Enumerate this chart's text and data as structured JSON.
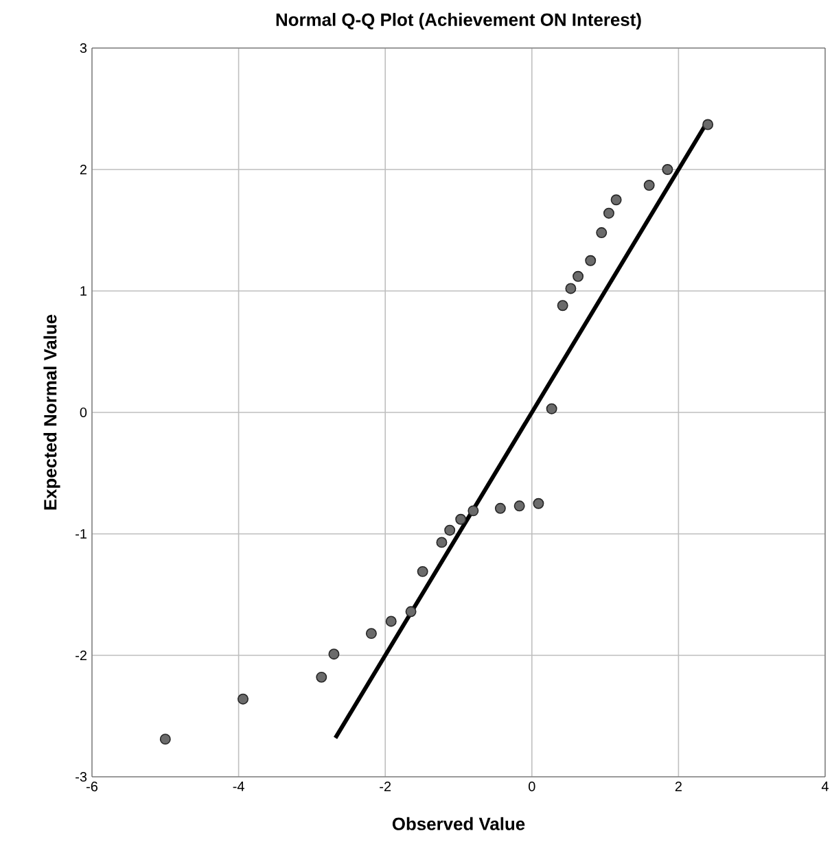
{
  "chart_data": {
    "type": "scatter",
    "title": "Normal Q-Q Plot (Achievement ON Interest)",
    "xlabel": "Observed Value",
    "ylabel": "Expected Normal Value",
    "xlim": [
      -6,
      4
    ],
    "ylim": [
      -3,
      3
    ],
    "xticks": [
      -6,
      -4,
      -2,
      0,
      2,
      4
    ],
    "yticks": [
      -3,
      -2,
      -1,
      0,
      1,
      2,
      3
    ],
    "grid": true,
    "series": [
      {
        "color": "#6b6b6b",
        "marker": "circle",
        "x": [
          2.4,
          1.85,
          1.6,
          1.15,
          1.05,
          0.95,
          0.8,
          0.63,
          0.53,
          0.42,
          0.27,
          0.09,
          -0.17,
          -0.43,
          -0.8,
          -0.97,
          -1.12,
          -1.23,
          -1.49,
          -1.65,
          -1.92,
          -2.19,
          -2.7,
          -2.87,
          -3.94,
          -5.0
        ],
        "values": [
          2.37,
          2.0,
          1.87,
          1.75,
          1.64,
          1.48,
          1.25,
          1.12,
          1.02,
          0.88,
          0.03,
          -0.75,
          -0.77,
          -0.79,
          -0.81,
          -0.88,
          -0.97,
          -1.07,
          -1.31,
          -1.64,
          -1.72,
          -1.82,
          -1.99,
          -2.18,
          -2.36,
          -2.69
        ]
      },
      {
        "type": "line",
        "color": "#000000",
        "marker": "none",
        "x": [
          -2.68,
          2.38
        ],
        "values": [
          -2.68,
          2.38
        ]
      }
    ]
  }
}
